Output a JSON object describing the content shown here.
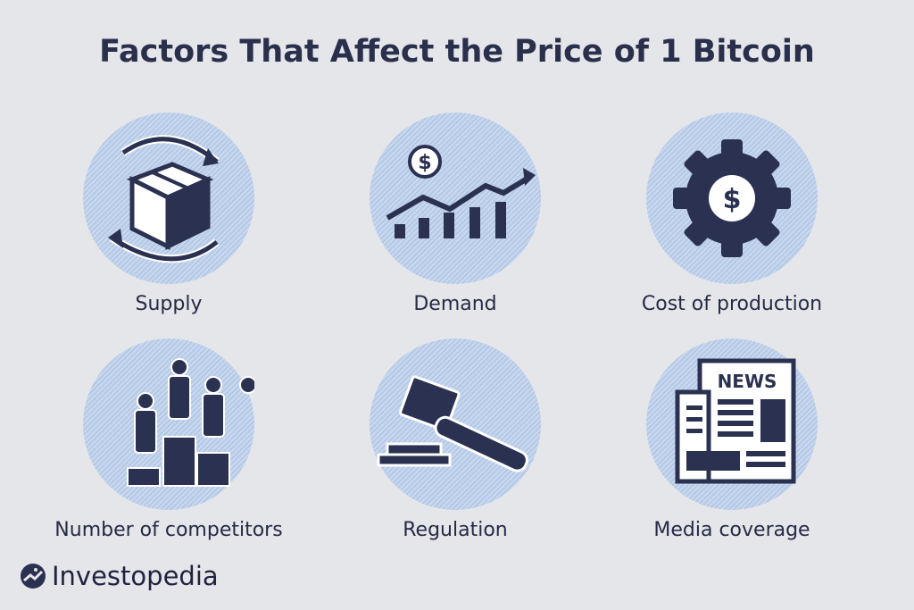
{
  "title": "Factors That Affect the Price of 1 Bitcoin",
  "colors": {
    "background": "#e5e6ea",
    "circle": "#b4c9e6",
    "icon": "#2b3150"
  },
  "factors": [
    {
      "label": "Supply",
      "icon": "box-cycle-icon"
    },
    {
      "label": "Demand",
      "icon": "rising-chart-dollar-icon"
    },
    {
      "label": "Cost of production",
      "icon": "gear-dollar-icon"
    },
    {
      "label": "Number of competitors",
      "icon": "podium-people-icon"
    },
    {
      "label": "Regulation",
      "icon": "gavel-icon"
    },
    {
      "label": "Media coverage",
      "icon": "newspaper-icon",
      "icon_text": "NEWS"
    }
  ],
  "brand": "Investopedia"
}
